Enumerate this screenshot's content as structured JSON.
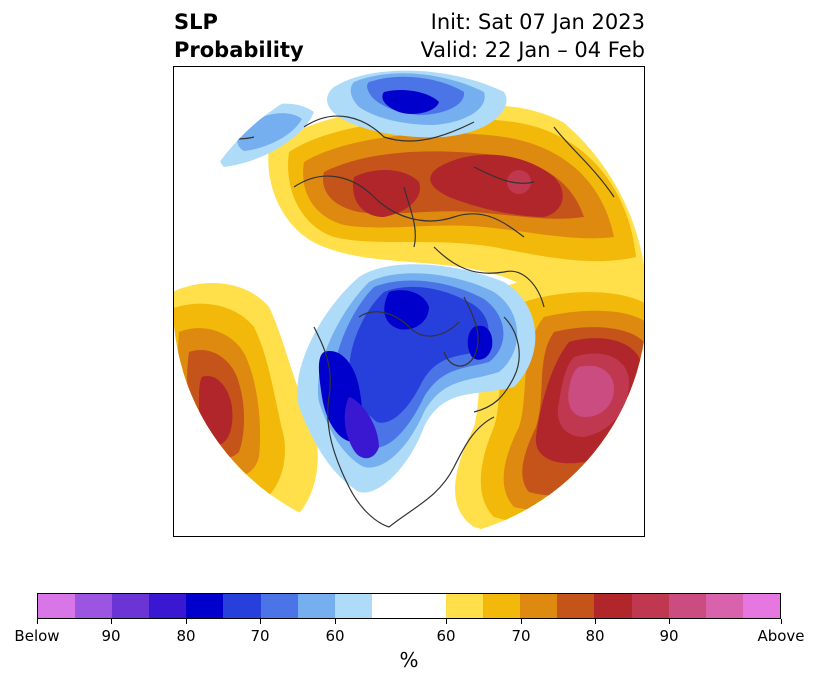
{
  "title": {
    "left_line1": "SLP",
    "left_line2": "Probability",
    "right_line1": "Init: Sat 07 Jan 2023",
    "right_line2": "Valid: 22 Jan – 04 Feb"
  },
  "colorbar": {
    "unit": "%",
    "tick_labels": [
      "Below",
      "90",
      "80",
      "70",
      "60",
      "60",
      "70",
      "80",
      "90",
      "Above"
    ],
    "below_colors": [
      "#d876e8",
      "#9b55e0",
      "#6b35d6",
      "#3a17d0",
      "#0000cc",
      "#2740dc",
      "#4b75e6",
      "#75aff0",
      "#aedcf8"
    ],
    "neutral_color": "#ffffff",
    "above_colors": [
      "#ffe04a",
      "#f2b90a",
      "#de8a10",
      "#c4541a",
      "#b0262a",
      "#c0384f",
      "#cb4c80",
      "#d962ad",
      "#e676e0"
    ]
  },
  "map": {
    "projection": "north-polar-stereographic",
    "variable": "sea level pressure tercile probability"
  }
}
